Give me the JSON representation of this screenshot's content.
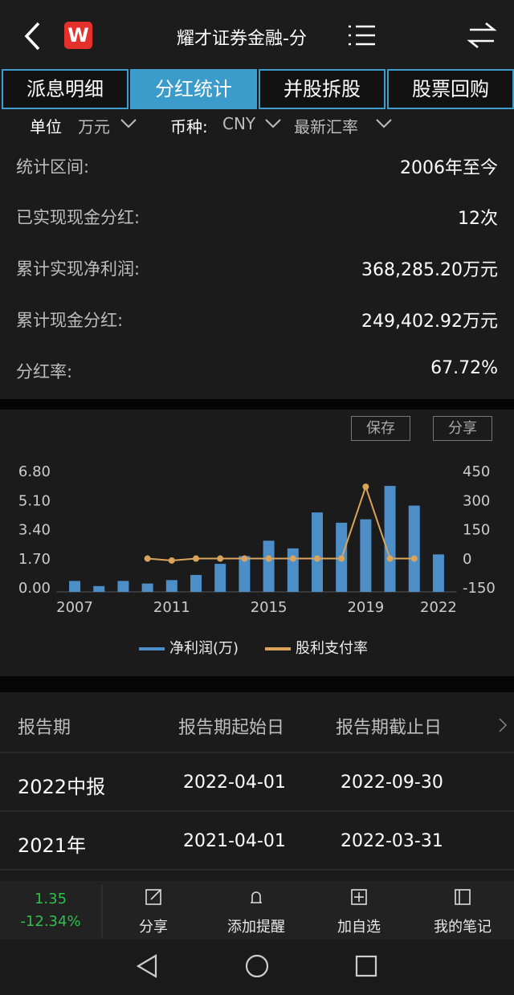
{
  "header": {
    "logo": "W",
    "title": "耀才证券金融-分"
  },
  "tabs": [
    "派息明细",
    "分红统计",
    "并股拆股",
    "股票回购"
  ],
  "filters": {
    "unit_label": "单位",
    "unit_value": "万元",
    "currency_label": "币种:",
    "currency_value": "CNY",
    "rate": "最新汇率"
  },
  "stats": [
    {
      "label": "统计区间:",
      "value": "2006年至今"
    },
    {
      "label": "已实现现金分红:",
      "value": "12次"
    },
    {
      "label": "累计实现净利润:",
      "value": "368,285.20万元"
    },
    {
      "label": "累计现金分红:",
      "value": "249,402.92万元"
    },
    {
      "label": "分红率:",
      "value": "67.72%"
    }
  ],
  "chart_buttons": [
    "保存",
    "分享"
  ],
  "chart_data": {
    "type": "bar",
    "x": [
      2007,
      2008,
      2009,
      2010,
      2011,
      2012,
      2013,
      2014,
      2015,
      2016,
      2017,
      2018,
      2019,
      2020,
      2021,
      2022
    ],
    "xlim": [
      2006.25,
      2022.75
    ],
    "xticks": [
      2007,
      2011,
      2015,
      2019,
      2022
    ],
    "ylim": [
      0,
      6.8
    ],
    "yticks": [
      {
        "value": 0,
        "label": "0.00"
      },
      {
        "value": 1.7,
        "label": "1.70"
      },
      {
        "value": 3.4,
        "label": "3.40"
      },
      {
        "value": 5.1,
        "label": "5.10"
      },
      {
        "value": 6.8,
        "label": "6.80"
      }
    ],
    "y2lim": [
      -150,
      450
    ],
    "y2ticks": [
      -150,
      0,
      150,
      300,
      450
    ],
    "series": [
      {
        "name": "净利润(万)",
        "type": "bar",
        "color": "#4b8ec8",
        "values": [
          0.45,
          0.15,
          0.45,
          0.3,
          0.5,
          0.8,
          1.45,
          1.9,
          2.8,
          2.35,
          4.45,
          3.85,
          4.05,
          6.0,
          4.85,
          2.0
        ]
      },
      {
        "name": "股利支付率",
        "type": "line",
        "axis": "y2",
        "color": "#d9a45c",
        "values": [
          null,
          null,
          null,
          5,
          -5,
          5,
          5,
          5,
          5,
          5,
          5,
          5,
          375,
          5,
          5,
          null
        ]
      }
    ]
  },
  "table": {
    "header": [
      "报告期",
      "报告期起始日",
      "报告期截止日"
    ],
    "rows": [
      [
        "2022中报",
        "2022-04-01",
        "2022-09-30"
      ],
      [
        "2021年",
        "2021-04-01",
        "2022-03-31"
      ]
    ]
  },
  "quote": {
    "price": "1.35",
    "change": "-12.34%"
  },
  "toolbar": [
    "分享",
    "添加提醒",
    "加自选",
    "我的笔记"
  ]
}
